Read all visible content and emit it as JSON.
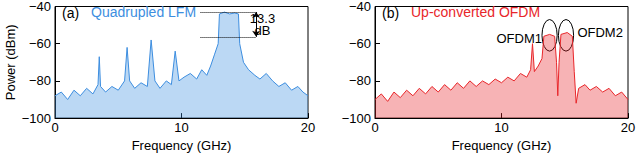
{
  "chart_data": [
    {
      "type": "line",
      "title": "(a)",
      "x_label": "Frequency (GHz)",
      "y_label": "Power (dBm)",
      "xlim": [
        0,
        20
      ],
      "xticks": [
        0,
        10,
        20
      ],
      "ylim": [
        -100,
        -40
      ],
      "yticks": [
        {
          "value": -100,
          "label": "−100"
        },
        {
          "value": -80,
          "label": "−80"
        },
        {
          "value": -60,
          "label": "−60"
        },
        {
          "value": -40,
          "label": "−40"
        }
      ],
      "grid": false,
      "legend": "top left",
      "x": [
        0,
        0.5,
        1,
        1.5,
        2,
        2.5,
        3,
        3.4,
        3.5,
        3.6,
        4,
        4.5,
        5,
        5.5,
        5.7,
        5.9,
        6.3,
        6.8,
        7.3,
        7.6,
        7.9,
        8.3,
        8.8,
        9.2,
        9.5,
        9.8,
        10.2,
        10.7,
        11.2,
        11.6,
        12,
        12.3,
        12.6,
        12.9,
        13.0,
        13.4,
        13.8,
        14.2,
        14.5,
        14.6,
        14.9,
        15.3,
        15.8,
        16.2,
        16.7,
        17.2,
        17.7,
        18.2,
        18.7,
        19.2,
        19.6,
        20
      ],
      "series": [
        {
          "name": "Quadrupled LFM",
          "color": "#3d8ee0",
          "values": [
            -88,
            -86,
            -90,
            -85,
            -88,
            -84,
            -87,
            -82,
            -67,
            -83,
            -86,
            -83,
            -85,
            -80,
            -62,
            -80,
            -84,
            -81,
            -83,
            -58,
            -80,
            -84,
            -80,
            -82,
            -64,
            -80,
            -78,
            -76,
            -79,
            -74,
            -77,
            -72,
            -66,
            -60,
            -44,
            -43,
            -44,
            -43.5,
            -44,
            -60,
            -70,
            -74,
            -77,
            -79,
            -76,
            -80,
            -83,
            -81,
            -85,
            -83,
            -86,
            -88
          ]
        }
      ],
      "annotations": [
        {
          "text": "13.3",
          "x": 16.4,
          "y": -46.5
        },
        {
          "text": "dB",
          "x": 16.4,
          "y": -53
        }
      ],
      "bracket": {
        "x": [
          11.5,
          15.9
        ],
        "y": [
          -43,
          -56.3
        ]
      }
    },
    {
      "type": "line",
      "title": "(b)",
      "x_label": "Frequency (GHz)",
      "xlim": [
        0,
        20
      ],
      "xticks": [
        0,
        10,
        20
      ],
      "ylim": [
        -100,
        -40
      ],
      "yticks": [
        {
          "value": -100,
          "label": "−100"
        },
        {
          "value": -80,
          "label": "−80"
        },
        {
          "value": -60,
          "label": "−60"
        },
        {
          "value": -40,
          "label": "−40"
        }
      ],
      "grid": false,
      "legend": "top left",
      "x": [
        0,
        0.5,
        1,
        1.5,
        2,
        2.5,
        3,
        3.5,
        4,
        4.5,
        5,
        5.5,
        6,
        6.5,
        7,
        7.5,
        8,
        8.5,
        9,
        9.5,
        10,
        10.5,
        11,
        11.5,
        12,
        12.3,
        12.45,
        12.6,
        12.9,
        13.2,
        13.35,
        13.8,
        14.2,
        14.35,
        14.45,
        14.55,
        14.7,
        15.2,
        15.6,
        15.75,
        15.9,
        16.1,
        16.6,
        17,
        17.5,
        18,
        18.5,
        19,
        19.5,
        20
      ],
      "series": [
        {
          "name": "Up-converted OFDM",
          "color": "#e8262a",
          "values": [
            -90,
            -87,
            -91,
            -86,
            -89,
            -85,
            -88,
            -84,
            -87,
            -83,
            -86,
            -82,
            -85,
            -81,
            -84,
            -80,
            -83,
            -80,
            -82,
            -79,
            -81,
            -78,
            -80,
            -76,
            -78,
            -74,
            -60,
            -75,
            -72,
            -68,
            -56,
            -55,
            -56,
            -70,
            -88,
            -70,
            -55,
            -54,
            -56,
            -75,
            -92,
            -84,
            -82,
            -85,
            -83,
            -86,
            -84,
            -88,
            -86,
            -90
          ]
        }
      ],
      "annotations": [
        {
          "text": "OFDM1",
          "x": 11.4,
          "y": -57
        },
        {
          "text": "OFDM2",
          "x": 17.8,
          "y": -54
        }
      ],
      "ellipses": [
        {
          "x": [
            13.2,
            14.4
          ],
          "y": [
            -64,
            -47
          ]
        },
        {
          "x": [
            14.5,
            15.7
          ],
          "y": [
            -64,
            -47
          ]
        }
      ]
    }
  ]
}
